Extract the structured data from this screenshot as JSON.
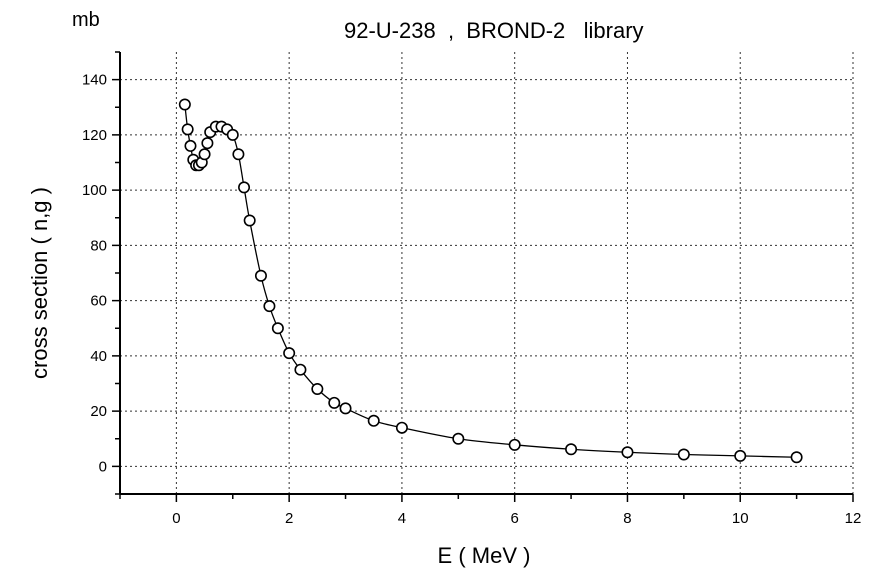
{
  "chart_data": {
    "type": "line",
    "title": "92-U-238  ,  BROND-2   library",
    "xlabel": "E ( MeV )",
    "ylabel": "cross section ( n,g )",
    "y_unit": "mb",
    "xlim": [
      -1,
      12
    ],
    "ylim": [
      -10,
      150
    ],
    "grid": true,
    "marker": "open-circle",
    "x_ticks": [
      0,
      2,
      4,
      6,
      8,
      10,
      12
    ],
    "y_ticks": [
      0,
      20,
      40,
      60,
      80,
      100,
      120,
      140
    ],
    "series": [
      {
        "x": [
          0.15,
          0.2,
          0.25,
          0.3,
          0.35,
          0.4,
          0.45,
          0.5,
          0.55,
          0.6,
          0.7,
          0.8,
          0.9,
          1.0,
          1.1,
          1.2,
          1.3,
          1.5,
          1.65,
          1.8,
          2.0,
          2.2,
          2.5,
          2.8,
          3.0,
          3.5,
          4.0,
          5.0,
          6.0,
          7.0,
          8.0,
          9.0,
          10.0,
          11.0
        ],
        "y": [
          131,
          122,
          116,
          111,
          109,
          109,
          110,
          113,
          117,
          121,
          123,
          123,
          122,
          120,
          113,
          101,
          89,
          69,
          58,
          50,
          41,
          35,
          28,
          23,
          21,
          16.5,
          14,
          10,
          7.8,
          6.2,
          5.1,
          4.3,
          3.8,
          3.3
        ]
      }
    ]
  }
}
